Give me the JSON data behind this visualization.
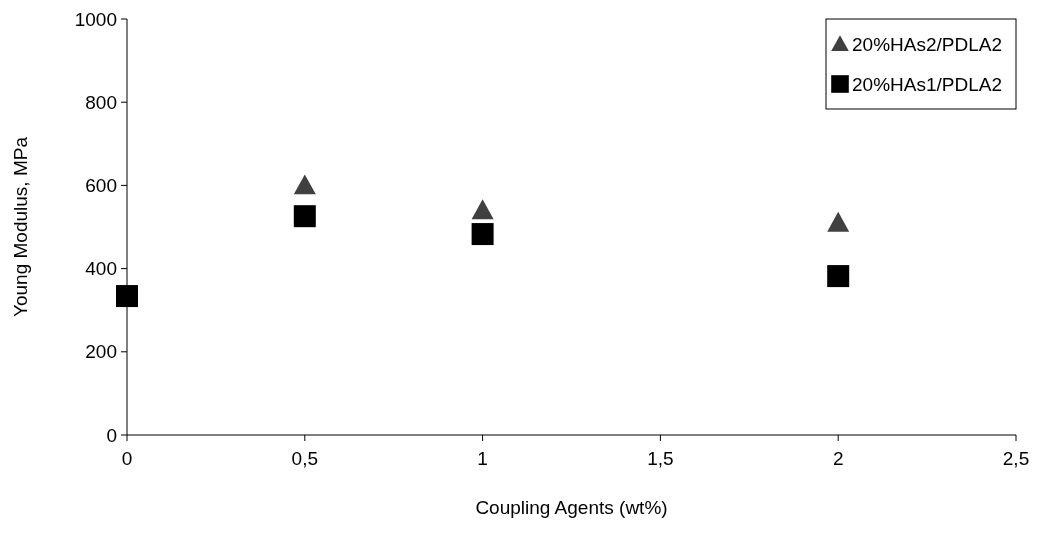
{
  "chart_data": {
    "type": "scatter",
    "xlabel": "Coupling Agents (wt%)",
    "ylabel": "Young Modulus, MPa",
    "xlim": [
      0,
      2.5
    ],
    "xticks": [
      0,
      {
        "value": 0.5,
        "label": "0,5"
      },
      1,
      {
        "value": 1.5,
        "label": "1,5"
      },
      2,
      {
        "value": 2.5,
        "label": "2,5"
      }
    ],
    "ylim": [
      0,
      1000
    ],
    "yticks": [
      0,
      200,
      400,
      600,
      800,
      1000
    ],
    "grid": false,
    "legend": "top right",
    "series": [
      {
        "name": "20%HAs2/PDLA2",
        "color": "#404040",
        "marker": "triangle",
        "x": [
          0.5,
          1,
          2
        ],
        "values": [
          600,
          540,
          510
        ]
      },
      {
        "name": "20%HAs1/PDLA2",
        "color": "#000000",
        "marker": "square",
        "x": [
          0,
          0.5,
          1,
          2
        ],
        "values": [
          334,
          526,
          483,
          382
        ]
      }
    ]
  }
}
